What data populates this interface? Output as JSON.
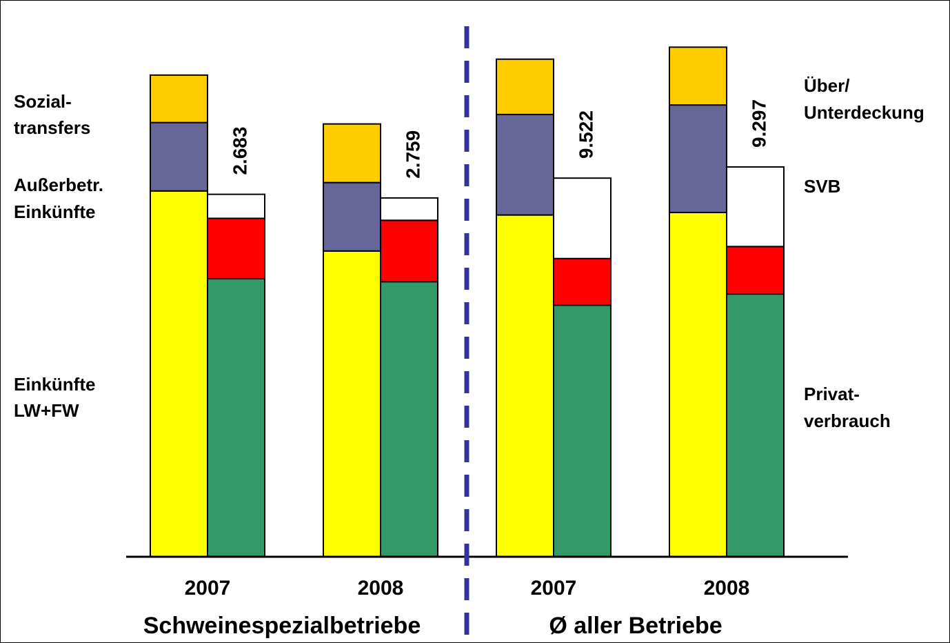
{
  "chart_data": {
    "type": "bar",
    "stacked": true,
    "groups": [
      {
        "name": "Schweinespezialbetriebe",
        "categories": [
          "2007",
          "2008"
        ]
      },
      {
        "name": "Ø aller Betriebe",
        "categories": [
          "2007",
          "2008"
        ]
      }
    ],
    "categories": [
      "2007",
      "2008",
      "2007",
      "2008"
    ],
    "stacks": [
      {
        "name": "income",
        "series": [
          {
            "name": "Einkünfte LW+FW",
            "color": "#FFFF00",
            "values": [
              13100,
              10950,
              12240,
              12330
            ]
          },
          {
            "name": "Außerbetr. Einkünfte",
            "color": "#666699",
            "values": [
              2450,
              2450,
              3600,
              3850
            ]
          },
          {
            "name": "Sozialtransfers",
            "color": "#FFCC00",
            "values": [
              1700,
              2100,
              1980,
              2070
            ]
          }
        ]
      },
      {
        "name": "use",
        "series": [
          {
            "name": "Privatverbrauch",
            "color": "#339966",
            "values": [
              9960,
              9850,
              9010,
              9410
            ]
          },
          {
            "name": "SVB",
            "color": "#FF0000",
            "values": [
              2160,
              2200,
              1670,
              1700
            ]
          },
          {
            "name": "Über/ Unterdeckung",
            "color": "#FFFFFF",
            "values": [
              860,
              800,
              2880,
              2850
            ]
          }
        ]
      }
    ],
    "value_labels": [
      "2.683",
      "2.759",
      "9.522",
      "9.297"
    ],
    "left_labels": [
      {
        "lines": [
          "Sozial-",
          "transfers"
        ]
      },
      {
        "lines": [
          "Außerbetr.",
          "Einkünfte"
        ]
      },
      {
        "lines": [
          "Einkünfte",
          "LW+FW"
        ]
      }
    ],
    "right_labels": [
      {
        "lines": [
          "Über/",
          "Unterdeckung"
        ]
      },
      {
        "lines": [
          "SVB"
        ]
      },
      {
        "lines": [
          "Privat-",
          "verbrauch"
        ]
      }
    ],
    "separator_color": "#333399",
    "ylim": [
      0,
      19000
    ],
    "grid": false,
    "legend": "none"
  }
}
